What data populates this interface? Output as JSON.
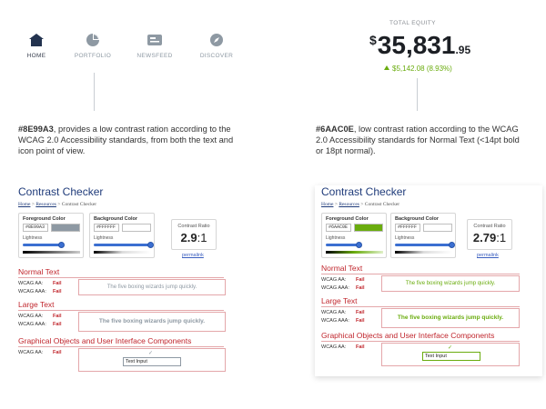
{
  "nav": {
    "items": [
      {
        "label": "HOME",
        "icon": "home-icon",
        "active": true
      },
      {
        "label": "PORTFOLIO",
        "icon": "pie-chart-icon",
        "active": false
      },
      {
        "label": "NEWSFEED",
        "icon": "newspaper-icon",
        "active": false
      },
      {
        "label": "DISCOVER",
        "icon": "compass-icon",
        "active": false
      }
    ]
  },
  "equity": {
    "label": "TOTAL EQUITY",
    "currency": "$",
    "amount": "35,831",
    "cents": ".95",
    "change": "$5,142.08 (8.93%)"
  },
  "descriptions": {
    "left_hex": "#8E99A3",
    "left_text": ", provides a low contrast ration according to the WCAG 2.0 Accessibility standards, from both the text and icon point of view.",
    "right_hex": "#6AAC0E",
    "right_text": ", low contrast ration according to the WCAG 2.0 Accessibility standards for Normal Text (<14pt bold or 18pt normal)."
  },
  "checkers": [
    {
      "title": "Contrast Checker",
      "breadcrumb": [
        "Home",
        "Resources",
        "Contrast Checker"
      ],
      "foreground_label": "Foreground Color",
      "foreground_hex": "#8E99A3",
      "foreground_color": "#8E99A3",
      "background_label": "Background Color",
      "background_hex": "#FFFFFF",
      "lightness_label": "Lightness",
      "ratio_label": "Contrast Ratio",
      "ratio_value": "2.9",
      "ratio_suffix": ":1",
      "permalink": "permalink",
      "normal_text": "Normal Text",
      "large_text": "Large Text",
      "graphical": "Graphical Objects and User Interface Components",
      "wcag_aa": "WCAG AA:",
      "wcag_aaa": "WCAG AAA:",
      "fail": "Fail",
      "sample_text": "The five boxing wizards jump quickly.",
      "text_input": "Text Input",
      "check": "✓"
    },
    {
      "title": "Contrast Checker",
      "breadcrumb": [
        "Home",
        "Resources",
        "Contrast Checker"
      ],
      "foreground_label": "Foreground Color",
      "foreground_hex": "#6AAC0E",
      "foreground_color": "#6AAC0E",
      "background_label": "Background Color",
      "background_hex": "#FFFFFF",
      "lightness_label": "Lightness",
      "ratio_label": "Contrast Ratio",
      "ratio_value": "2.79",
      "ratio_suffix": ":1",
      "permalink": "permalink",
      "normal_text": "Normal Text",
      "large_text": "Large Text",
      "graphical": "Graphical Objects and User Interface Components",
      "wcag_aa": "WCAG AA:",
      "wcag_aaa": "WCAG AAA:",
      "fail": "Fail",
      "sample_text": "The five boxing wizards jump quickly.",
      "text_input": "Text Input",
      "check": "✓"
    }
  ],
  "colors": {
    "muted_gray": "#8E99A3",
    "green": "#6AAC0E",
    "fail_red": "#c0262d",
    "title_blue": "#1f3b7a"
  }
}
